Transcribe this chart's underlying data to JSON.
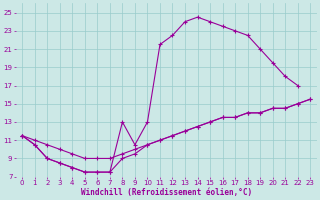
{
  "xlabel": "Windchill (Refroidissement éolien,°C)",
  "bg_color": "#cce8e6",
  "line_color": "#990099",
  "grid_color": "#99cccc",
  "xlim": [
    -0.5,
    23.5
  ],
  "ylim": [
    7,
    26
  ],
  "xticks": [
    0,
    1,
    2,
    3,
    4,
    5,
    6,
    7,
    8,
    9,
    10,
    11,
    12,
    13,
    14,
    15,
    16,
    17,
    18,
    19,
    20,
    21,
    22,
    23
  ],
  "yticks": [
    7,
    9,
    11,
    13,
    15,
    17,
    19,
    21,
    23,
    25
  ],
  "line1_x": [
    0,
    1,
    2,
    3,
    4,
    5,
    6,
    7,
    8,
    9,
    10,
    11,
    12,
    13,
    14,
    15,
    16,
    17,
    18,
    19,
    20,
    21,
    22
  ],
  "line1_y": [
    11.5,
    10.5,
    9.0,
    8.5,
    8.0,
    7.5,
    7.5,
    7.5,
    13.0,
    10.5,
    13.0,
    21.5,
    22.5,
    24.0,
    24.5,
    24.0,
    23.5,
    23.0,
    22.5,
    21.0,
    19.5,
    18.0,
    17.0
  ],
  "line2_x": [
    0,
    1,
    2,
    3,
    4,
    5,
    6,
    7,
    8,
    9,
    10,
    11,
    12,
    13,
    14,
    15,
    16,
    17,
    18,
    19,
    20,
    21,
    22,
    23
  ],
  "line2_y": [
    11.5,
    11.0,
    10.5,
    10.0,
    9.5,
    9.0,
    9.0,
    9.0,
    9.5,
    10.0,
    10.5,
    11.0,
    11.5,
    12.0,
    12.5,
    13.0,
    13.5,
    13.5,
    14.0,
    14.0,
    14.5,
    14.5,
    15.0,
    15.5
  ],
  "line3_x": [
    0,
    1,
    2,
    3,
    4,
    5,
    6,
    7,
    8,
    9,
    10,
    11,
    12,
    13,
    14,
    15,
    16,
    17,
    18,
    19,
    20,
    21,
    22,
    23
  ],
  "line3_y": [
    11.5,
    10.5,
    9.0,
    8.5,
    8.0,
    7.5,
    7.5,
    7.5,
    9.0,
    9.5,
    10.5,
    11.0,
    11.5,
    12.0,
    12.5,
    13.0,
    13.5,
    13.5,
    14.0,
    14.0,
    14.5,
    14.5,
    15.0,
    15.5
  ],
  "marker": "+",
  "markersize": 3,
  "markeredgewidth": 0.8,
  "linewidth": 0.8,
  "xlabel_fontsize": 5.5,
  "tick_fontsize": 5,
  "figwidth": 3.2,
  "figheight": 2.0,
  "dpi": 100
}
